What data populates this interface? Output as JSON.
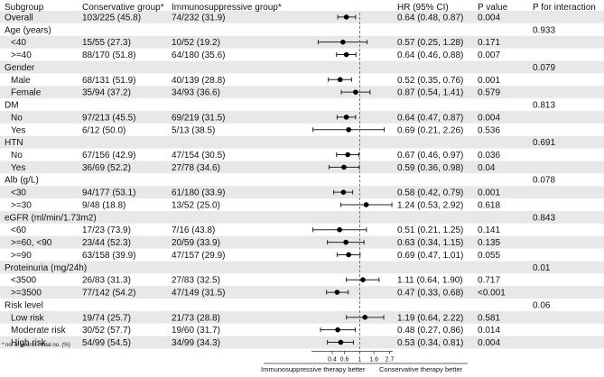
{
  "chart_data": {
    "type": "forest",
    "columns": {
      "subgroup": "Subgroup",
      "conservative": "Conservative group*",
      "immuno": "Immunosuppressive group*",
      "hr": "HR (95% CI)",
      "p": "P value",
      "p_interaction": "P for interaction"
    },
    "rows": [
      {
        "label": "Overall",
        "kind": "data",
        "indent": false,
        "cons": "103/225 (45.8)",
        "imm": "74/232 (31.9)",
        "hr_text": "0.64 (0.48, 0.87)",
        "p": "0.004",
        "hr": 0.64,
        "lo": 0.48,
        "hi": 0.87
      },
      {
        "label": "Age (years)",
        "kind": "header",
        "p_int": "0.933"
      },
      {
        "label": "<40",
        "kind": "data",
        "indent": true,
        "cons": "15/55 (27.3)",
        "imm": "10/52 (19.2)",
        "hr_text": "0.57 (0.25, 1.28)",
        "p": "0.171",
        "hr": 0.57,
        "lo": 0.25,
        "hi": 1.28
      },
      {
        "label": ">=40",
        "kind": "data",
        "indent": true,
        "cons": "88/170 (51.8)",
        "imm": "64/180 (35.6)",
        "hr_text": "0.64 (0.46, 0.88)",
        "p": "0.007",
        "hr": 0.64,
        "lo": 0.46,
        "hi": 0.88
      },
      {
        "label": "Gender",
        "kind": "header",
        "p_int": "0.079"
      },
      {
        "label": "Male",
        "kind": "data",
        "indent": true,
        "cons": "68/131 (51.9)",
        "imm": "40/139 (28.8)",
        "hr_text": "0.52 (0.35, 0.76)",
        "p": "0.001",
        "hr": 0.52,
        "lo": 0.35,
        "hi": 0.76
      },
      {
        "label": "Female",
        "kind": "data",
        "indent": true,
        "cons": "35/94 (37.2)",
        "imm": "34/93 (36.6)",
        "hr_text": "0.87 (0.54, 1.41)",
        "p": "0.579",
        "hr": 0.87,
        "lo": 0.54,
        "hi": 1.41
      },
      {
        "label": "DM",
        "kind": "header",
        "p_int": "0.813"
      },
      {
        "label": "No",
        "kind": "data",
        "indent": true,
        "cons": "97/213 (45.5)",
        "imm": "69/219 (31.5)",
        "hr_text": "0.64 (0.47, 0.87)",
        "p": "0.004",
        "hr": 0.64,
        "lo": 0.47,
        "hi": 0.87
      },
      {
        "label": "Yes",
        "kind": "data",
        "indent": true,
        "cons": "6/12 (50.0)",
        "imm": "5/13 (38.5)",
        "hr_text": "0.69 (0.21, 2.26)",
        "p": "0.536",
        "hr": 0.69,
        "lo": 0.21,
        "hi": 2.26
      },
      {
        "label": "HTN",
        "kind": "header",
        "p_int": "0.691"
      },
      {
        "label": "No",
        "kind": "data",
        "indent": true,
        "cons": "67/156 (42.9)",
        "imm": "47/154 (30.5)",
        "hr_text": "0.67 (0.46, 0.97)",
        "p": "0.036",
        "hr": 0.67,
        "lo": 0.46,
        "hi": 0.97
      },
      {
        "label": "Yes",
        "kind": "data",
        "indent": true,
        "cons": "36/69 (52.2)",
        "imm": "27/78 (34.6)",
        "hr_text": "0.59 (0.36, 0.98)",
        "p": "0.04",
        "hr": 0.59,
        "lo": 0.36,
        "hi": 0.98
      },
      {
        "label": "Alb (g/L)",
        "kind": "header",
        "p_int": "0.078"
      },
      {
        "label": "<30",
        "kind": "data",
        "indent": true,
        "cons": "94/177 (53.1)",
        "imm": "61/180 (33.9)",
        "hr_text": "0.58 (0.42, 0.79)",
        "p": "0.001",
        "hr": 0.58,
        "lo": 0.42,
        "hi": 0.79
      },
      {
        "label": ">=30",
        "kind": "data",
        "indent": true,
        "cons": "9/48 (18.8)",
        "imm": "13/52 (25.0)",
        "hr_text": "1.24 (0.53, 2.92)",
        "p": "0.618",
        "hr": 1.24,
        "lo": 0.53,
        "hi": 2.92
      },
      {
        "label": "eGFR (ml/min/1.73m2)",
        "kind": "header",
        "p_int": "0.843"
      },
      {
        "label": "<60",
        "kind": "data",
        "indent": true,
        "cons": "17/23 (73.9)",
        "imm": "7/16 (43.8)",
        "hr_text": "0.51 (0.21, 1.25)",
        "p": "0.141",
        "hr": 0.51,
        "lo": 0.21,
        "hi": 1.25
      },
      {
        "label": ">=60, <90",
        "kind": "data",
        "indent": true,
        "cons": "23/44 (52.3)",
        "imm": "20/59 (33.9)",
        "hr_text": "0.63 (0.34, 1.15)",
        "p": "0.135",
        "hr": 0.63,
        "lo": 0.34,
        "hi": 1.15
      },
      {
        "label": ">=90",
        "kind": "data",
        "indent": true,
        "cons": "63/158 (39.9)",
        "imm": "47/157 (29.9)",
        "hr_text": "0.69 (0.47, 1.01)",
        "p": "0.055",
        "hr": 0.69,
        "lo": 0.47,
        "hi": 1.01
      },
      {
        "label": "Proteinuria (mg/24h)",
        "kind": "header",
        "p_int": "0.01"
      },
      {
        "label": "<3500",
        "kind": "data",
        "indent": true,
        "cons": "26/83 (31.3)",
        "imm": "27/83 (32.5)",
        "hr_text": "1.11 (0.64, 1.90)",
        "p": "0.717",
        "hr": 1.11,
        "lo": 0.64,
        "hi": 1.9
      },
      {
        "label": ">=3500",
        "kind": "data",
        "indent": true,
        "cons": "77/142 (54.2)",
        "imm": "47/149 (31.5)",
        "hr_text": "0.47 (0.33, 0.68)",
        "p": "<0.001",
        "hr": 0.47,
        "lo": 0.33,
        "hi": 0.68
      },
      {
        "label": "Risk level",
        "kind": "header",
        "p_int": "0.06"
      },
      {
        "label": "Low risk",
        "kind": "data",
        "indent": true,
        "cons": "19/74 (25.7)",
        "imm": "21/73 (28.8)",
        "hr_text": "1.19 (0.64, 2.22)",
        "p": "0.581",
        "hr": 1.19,
        "lo": 0.64,
        "hi": 2.22
      },
      {
        "label": "Moderate risk",
        "kind": "data",
        "indent": true,
        "cons": "30/52 (57.7)",
        "imm": "19/60 (31.7)",
        "hr_text": "0.48 (0.27, 0.86)",
        "p": "0.014",
        "hr": 0.48,
        "lo": 0.27,
        "hi": 0.86
      },
      {
        "label": "High risk",
        "kind": "data",
        "indent": true,
        "cons": "54/99 (54.5)",
        "imm": "34/99 (34.3)",
        "hr_text": "0.53 (0.34, 0.81)",
        "p": "0.004",
        "hr": 0.53,
        "lo": 0.34,
        "hi": 0.81
      }
    ],
    "x_scale": "log",
    "xlim": [
      0.2,
      3.0
    ],
    "x_ticks": [
      0.4,
      0.6,
      1,
      1.6,
      2.7
    ],
    "x_tick_labels": [
      "0.4",
      "0.6",
      "1",
      "1.6",
      "2.7"
    ],
    "reference_line": 1,
    "direction_left": "Immunosuppressive therapy better",
    "direction_right": "Conservative therapy better",
    "footnote": "* no. of events / total no. (%)"
  }
}
